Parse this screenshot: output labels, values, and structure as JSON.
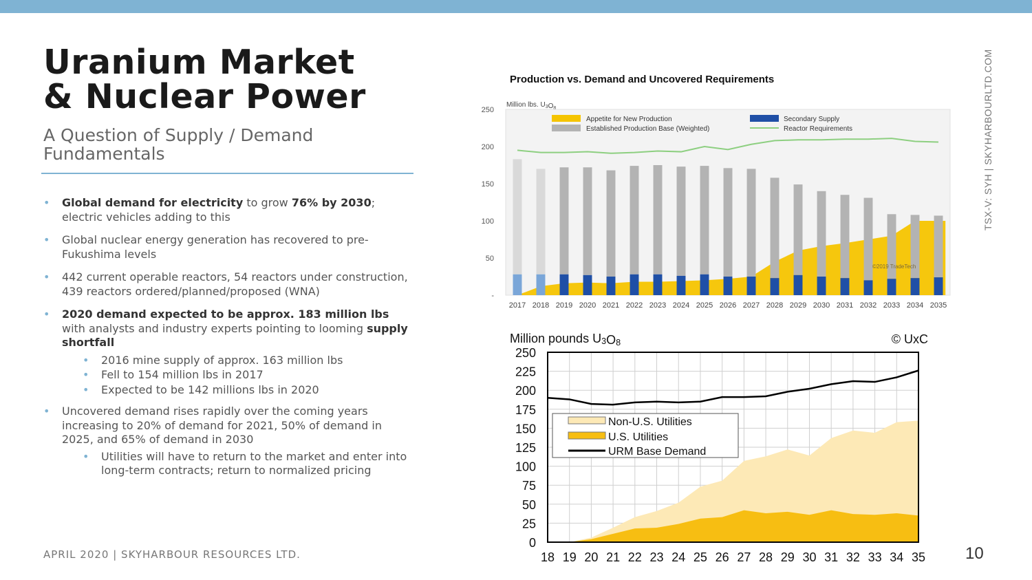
{
  "slide": {
    "title_line1": "Uranium Market",
    "title_line2": "& Nuclear Power",
    "subtitle": "A Question of Supply / Demand Fundamentals",
    "vertical_text": "TSX-V: SYH  |  SKYHARBOURLTD.COM",
    "footer": "APRIL 2020  |  SKYHARBOUR RESOURCES LTD.",
    "page_number": "10",
    "bullet_marker": "•",
    "bullets": {
      "b1_bold1": "Global demand for electricity",
      "b1_text1": " to grow ",
      "b1_bold2": "76% by 2030",
      "b1_text2": "; electric vehicles adding to this",
      "b2": "Global nuclear energy generation has recovered to pre-Fukushima levels",
      "b3": "442 current operable reactors, 54 reactors under construction, 439 reactors ordered/planned/proposed (WNA)",
      "b4_bold1": "2020 demand expected to be approx. 183 million lbs",
      "b4_text1": " with analysts and industry experts pointing to looming ",
      "b4_bold2": "supply shortfall",
      "b4_sub1": "2016 mine supply of approx. 163 million lbs",
      "b4_sub2": "Fell to 154 million lbs in 2017",
      "b4_sub3": "Expected to be 142 millions lbs in 2020",
      "b5": "Uncovered demand rises rapidly over the coming years increasing to 20% of demand for 2021, 50% of demand in 2025, and 65% of demand in 2030",
      "b5_sub1": "Utilities will have to return to the market and enter into long-term contracts; return to normalized pricing"
    }
  },
  "chart_data": [
    {
      "type": "bar",
      "title": "Production vs. Demand and Uncovered Requirements",
      "ylabel": "Million lbs. U3O8",
      "watermark": "©2019 TradeTech",
      "ylim": [
        0,
        250
      ],
      "yticks": [
        250,
        200,
        150,
        100,
        50,
        "-"
      ],
      "legend_position": "top",
      "categories": [
        "2017",
        "2018",
        "2019",
        "2020",
        "2021",
        "2022",
        "2023",
        "2024",
        "2025",
        "2026",
        "2027",
        "2028",
        "2029",
        "2030",
        "2031",
        "2032",
        "2033",
        "2034",
        "2035"
      ],
      "series": [
        {
          "name": "Appetite for New Production",
          "kind": "area",
          "color": "#f5c400",
          "values": [
            0,
            12,
            16,
            17,
            16,
            18,
            18,
            19,
            20,
            22,
            25,
            45,
            60,
            66,
            70,
            75,
            80,
            100,
            100
          ]
        },
        {
          "name": "Established Production Base (Weighted)",
          "kind": "bar",
          "color": "#b3b3b3",
          "values": [
            155,
            142,
            144,
            145,
            143,
            146,
            147,
            147,
            146,
            146,
            145,
            135,
            122,
            115,
            112,
            111,
            87,
            85,
            83
          ]
        },
        {
          "name": "Secondary Supply",
          "kind": "bar",
          "color": "#1f4fa6",
          "values": [
            28,
            28,
            28,
            27,
            25,
            28,
            28,
            26,
            28,
            25,
            25,
            23,
            27,
            25,
            23,
            20,
            22,
            23,
            24
          ]
        },
        {
          "name": "Reactor Requirements",
          "kind": "line",
          "color": "#8dcf80",
          "values": [
            195,
            192,
            192,
            193,
            191,
            192,
            194,
            193,
            200,
            196,
            203,
            208,
            209,
            209,
            210,
            210,
            211,
            207,
            206
          ]
        }
      ]
    },
    {
      "type": "area",
      "title": "",
      "ylabel": "Million pounds U3O8",
      "source": "© UxC",
      "ylim": [
        0,
        250
      ],
      "yticks": [
        250,
        225,
        200,
        175,
        150,
        125,
        100,
        75,
        50,
        25,
        0
      ],
      "legend_position": "center-left",
      "x": [
        "18",
        "19",
        "20",
        "21",
        "22",
        "23",
        "24",
        "25",
        "26",
        "27",
        "28",
        "29",
        "30",
        "31",
        "32",
        "33",
        "34",
        "35"
      ],
      "series": [
        {
          "name": "Non-U.S. Utilities",
          "kind": "stacked-area",
          "color": "#fde9b6",
          "values": [
            0,
            0,
            2,
            8,
            15,
            22,
            28,
            42,
            48,
            65,
            75,
            82,
            78,
            95,
            110,
            108,
            120,
            125
          ]
        },
        {
          "name": "U.S. Utilities",
          "kind": "stacked-area",
          "color": "#f7be12",
          "values": [
            0,
            0,
            4,
            11,
            18,
            19,
            24,
            31,
            33,
            42,
            38,
            40,
            36,
            42,
            37,
            36,
            38,
            35
          ]
        },
        {
          "name": "URM Base Demand",
          "kind": "line",
          "color": "#000000",
          "values": [
            190,
            188,
            182,
            181,
            184,
            185,
            184,
            185,
            191,
            191,
            192,
            198,
            202,
            208,
            212,
            211,
            217,
            226
          ]
        }
      ]
    }
  ]
}
